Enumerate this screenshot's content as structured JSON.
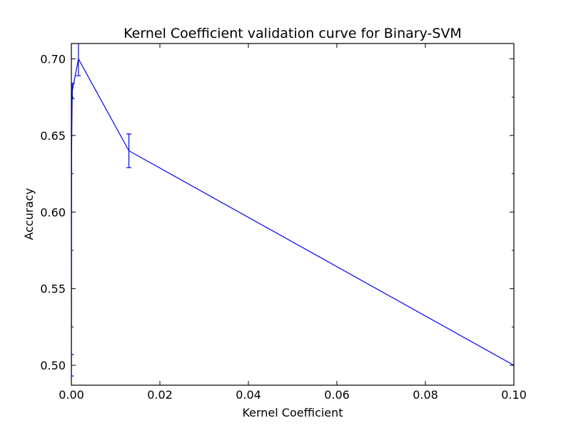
{
  "chart_data": {
    "type": "line",
    "title": "Kernel Coefficient validation curve for Binary-SVM",
    "xlabel": "Kernel Coefficient",
    "ylabel": "Accuracy",
    "xlim": [
      0.0,
      0.1
    ],
    "ylim": [
      0.487,
      0.71
    ],
    "x_ticks": [
      0.0,
      0.02,
      0.04,
      0.06,
      0.08,
      0.1
    ],
    "x_tick_labels": [
      "0.00",
      "0.02",
      "0.04",
      "0.06",
      "0.08",
      "0.10"
    ],
    "y_ticks": [
      0.5,
      0.55,
      0.6,
      0.65,
      0.7
    ],
    "y_tick_labels": [
      "0.50",
      "0.55",
      "0.60",
      "0.65",
      "0.70"
    ],
    "grid": false,
    "series": [
      {
        "color": "#0000ff",
        "x": [
          0.0,
          5e-05,
          0.0002,
          0.0016,
          0.013,
          0.1
        ],
        "y": [
          0.5,
          0.64,
          0.679,
          0.7,
          0.64,
          0.5
        ],
        "yerr": [
          0.007,
          0.0,
          0.005,
          0.011,
          0.011,
          0.0
        ]
      }
    ]
  }
}
